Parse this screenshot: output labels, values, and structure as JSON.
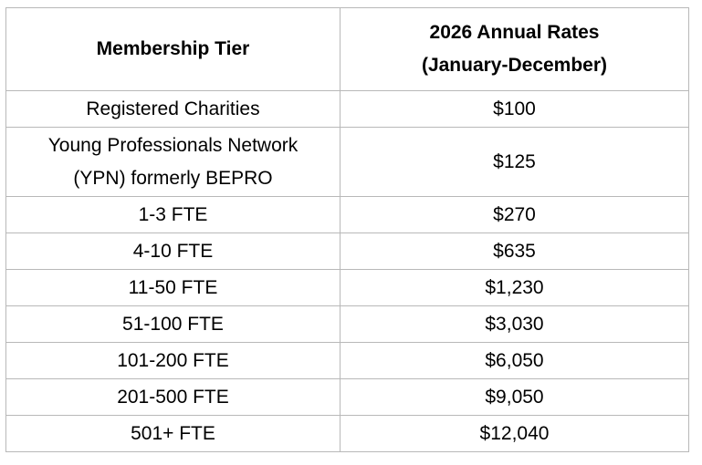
{
  "table": {
    "header": {
      "tier": "Membership Tier",
      "rate_line1": "2026 Annual Rates",
      "rate_line2": "(January-December)"
    },
    "rows": [
      {
        "tier": "Registered Charities",
        "rate": "$100"
      },
      {
        "tier_line1": "Young Professionals Network",
        "tier_line2": "(YPN) formerly BEPRO",
        "rate": "$125"
      },
      {
        "tier": "1-3 FTE",
        "rate": "$270"
      },
      {
        "tier": "4-10 FTE",
        "rate": "$635"
      },
      {
        "tier": "11-50 FTE",
        "rate": "$1,230"
      },
      {
        "tier": "51-100 FTE",
        "rate": "$3,030"
      },
      {
        "tier": "101-200 FTE",
        "rate": "$6,050"
      },
      {
        "tier": "201-500 FTE",
        "rate": "$9,050"
      },
      {
        "tier": "501+ FTE",
        "rate": "$12,040"
      }
    ]
  }
}
